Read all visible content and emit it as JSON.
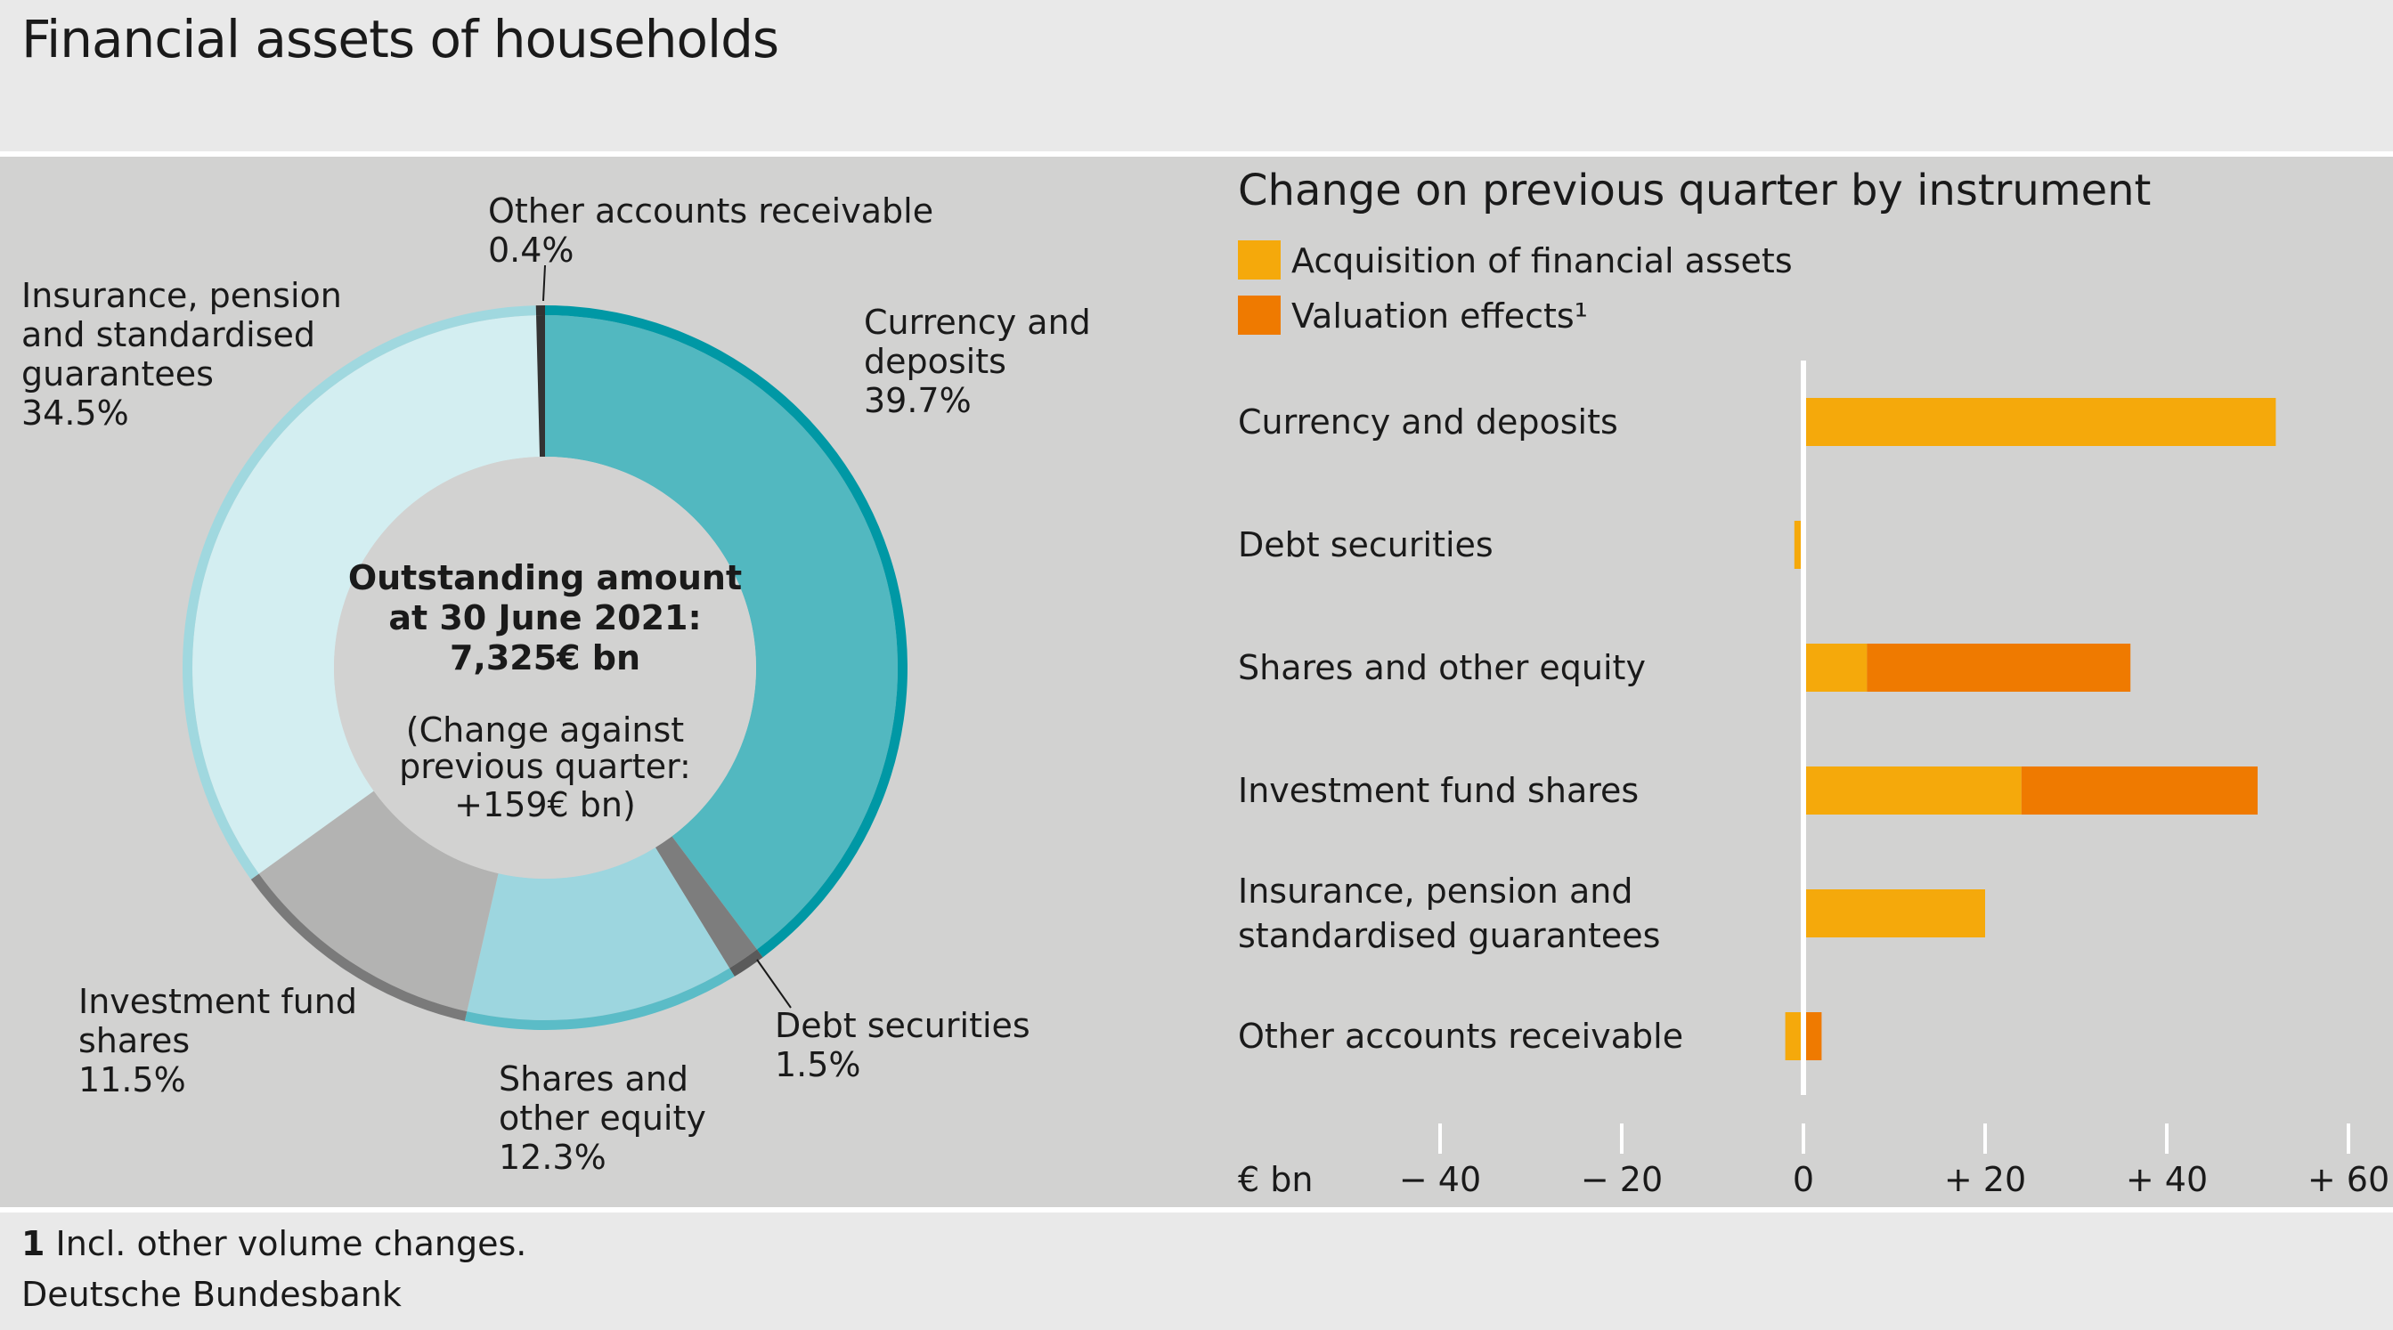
{
  "title": "Financial assets of households",
  "footnote": {
    "number": "1",
    "text": "Incl. other volume changes."
  },
  "source": "Deutsche Bundesbank",
  "colors": {
    "currency_fill": "#52b8c0",
    "currency_ring": "#0098a5",
    "debt_fill": "#7d7d7d",
    "debt_ring": "#5a5a5a",
    "shares_fill": "#9dd6df",
    "shares_ring": "#5bbcc7",
    "fund_fill": "#b3b3b2",
    "fund_ring": "#7a7a7a",
    "insurance_fill": "#d3eef1",
    "insurance_ring": "#a0d8df",
    "other_fill": "#333333",
    "acquisition": "#f5a90b",
    "valuation": "#ef7a00"
  },
  "chart_data": [
    {
      "type": "pie",
      "center": {
        "line1": "Outstanding amount",
        "line2": "at 30 June 2021:",
        "line3": "7,325€ bn",
        "line4": "(Change against",
        "line5": "previous quarter:",
        "line6": "+159€ bn)"
      },
      "slices": [
        {
          "key": "currency",
          "name_lines": [
            "Currency and",
            "deposits"
          ],
          "value": 39.7,
          "label": "39.7%"
        },
        {
          "key": "debt",
          "name_lines": [
            "Debt securities"
          ],
          "value": 1.5,
          "label": "1.5%"
        },
        {
          "key": "shares",
          "name_lines": [
            "Shares and",
            "other equity"
          ],
          "value": 12.3,
          "label": "12.3%"
        },
        {
          "key": "fund",
          "name_lines": [
            "Investment fund",
            "shares"
          ],
          "value": 11.5,
          "label": "11.5%"
        },
        {
          "key": "insurance",
          "name_lines": [
            "Insurance, pension",
            "and standardised",
            "guarantees"
          ],
          "value": 34.5,
          "label": "34.5%"
        },
        {
          "key": "other",
          "name_lines": [
            "Other accounts receivable"
          ],
          "value": 0.4,
          "label": "0.4%"
        }
      ]
    },
    {
      "type": "bar",
      "orientation": "horizontal",
      "stacked": true,
      "title": "Change on previous quarter by instrument",
      "unit_label": "€ bn",
      "xlim": [
        -45,
        62
      ],
      "x_ticks": [
        -40,
        -20,
        0,
        20,
        40,
        60
      ],
      "x_tick_labels": [
        "− 40",
        "− 20",
        "0",
        "+ 20",
        "+ 40",
        "+ 60"
      ],
      "legend": [
        {
          "name": "Acquisition of financial assets",
          "color": "#f5a90b"
        },
        {
          "name": "Valuation effects¹",
          "color": "#ef7a00"
        }
      ],
      "categories": [
        [
          "Currency and deposits"
        ],
        [
          "Debt securities"
        ],
        [
          "Shares and other equity"
        ],
        [
          "Investment fund shares"
        ],
        [
          "Insurance, pension and",
          "standardised guarantees"
        ],
        [
          "Other accounts receivable"
        ]
      ],
      "series": [
        {
          "name": "Acquisition of financial assets",
          "values": [
            52,
            -1,
            7,
            24,
            20,
            -2
          ]
        },
        {
          "name": "Valuation effects¹",
          "values": [
            0,
            0,
            29,
            26,
            0,
            2
          ]
        }
      ]
    }
  ]
}
